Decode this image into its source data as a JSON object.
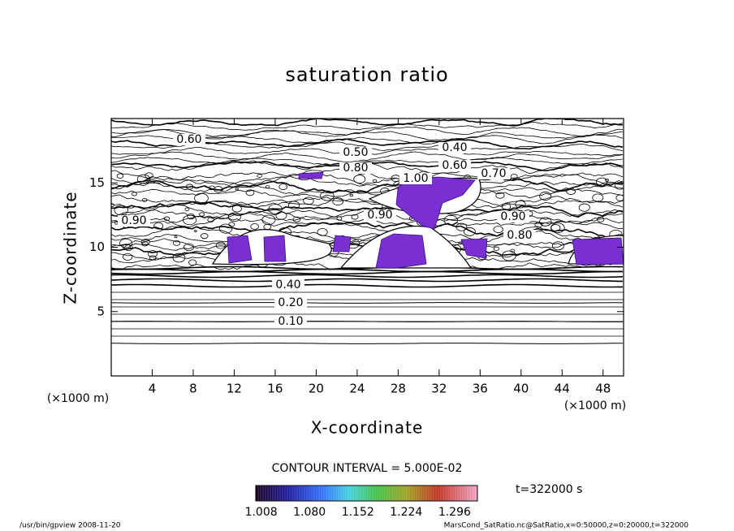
{
  "chart_data": {
    "type": "contour",
    "title": "saturation ratio",
    "x_label": "X-coordinate",
    "y_label": "Z-coordinate",
    "x_unit": "(×1000 m)",
    "y_unit": "(×1000 m)",
    "xlim": [
      0,
      50
    ],
    "xticks": [
      4,
      8,
      12,
      16,
      20,
      24,
      28,
      32,
      36,
      40,
      44,
      48
    ],
    "ylim": [
      0,
      20
    ],
    "yticks": [
      5,
      10,
      15
    ],
    "contour_interval": "CONTOUR INTERVAL = 5.000E-02",
    "contour_levels": [
      {
        "value": 0.1,
        "label": "0.10"
      },
      {
        "value": 0.2,
        "label": "0.20"
      },
      {
        "value": 0.4,
        "label": "0.40"
      },
      {
        "value": 0.5,
        "label": "0.50"
      },
      {
        "value": 0.6,
        "label": "0.60"
      },
      {
        "value": 0.7,
        "label": "0.70"
      },
      {
        "value": 0.8,
        "label": "0.80"
      },
      {
        "value": 0.9,
        "label": "0.90"
      },
      {
        "value": 1,
        "label": "1.00"
      }
    ],
    "colorbar": {
      "lim": [
        1.0,
        1.33
      ],
      "ticks": [
        {
          "value": 1.008,
          "label": "1.008"
        },
        {
          "value": 1.08,
          "label": "1.080"
        },
        {
          "value": 1.152,
          "label": "1.152"
        },
        {
          "value": 1.224,
          "label": "1.224"
        },
        {
          "value": 1.296,
          "label": "1.296"
        }
      ]
    },
    "time_label": "t=322000 s",
    "footer_left": "/usr/bin/gpview   2008-11-20",
    "footer_right": "MarsCond_SatRatio.nc@SatRatio,x=0:50000,z=0:20000,t=322000"
  }
}
